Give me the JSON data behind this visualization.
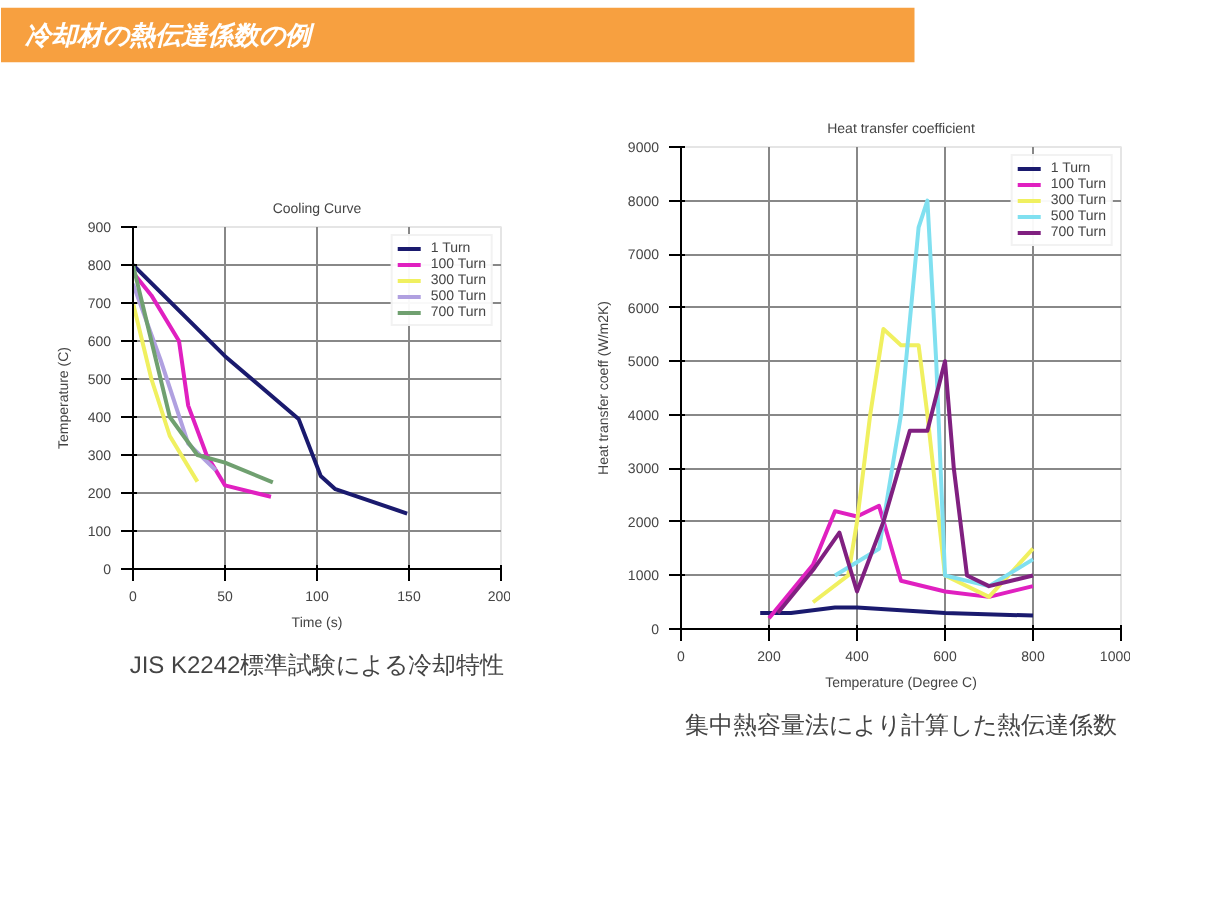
{
  "chart_data": [
    {
      "type": "other",
      "title": "冷却材の熱伝達係数の例"
    },
    {
      "type": "line",
      "title": "Cooling Curve",
      "xlabel": "Time (s)",
      "ylabel": "Temperature (C)",
      "xlim": [
        0,
        200
      ],
      "ylim": [
        0,
        900
      ],
      "xticks": [
        0,
        50,
        100,
        150,
        200
      ],
      "yticks": [
        0,
        100,
        200,
        300,
        400,
        500,
        600,
        700,
        800,
        900
      ],
      "grid": true,
      "legend": "top right",
      "marker": "none",
      "annotations": [
        "JIS K2242標準試験による冷却特性"
      ],
      "series": [
        {
          "name": "1 Turn",
          "color": "#1a1a6e",
          "x": [
            0,
            50,
            90,
            102,
            110,
            149
          ],
          "values": [
            800,
            560,
            395,
            245,
            210,
            146
          ]
        },
        {
          "name": "100 Turn",
          "color": "#e020c0",
          "x": [
            0,
            10,
            25,
            30,
            40,
            50,
            75
          ],
          "values": [
            780,
            720,
            600,
            430,
            300,
            220,
            190
          ]
        },
        {
          "name": "300 Turn",
          "color": "#f0f060",
          "x": [
            0,
            10,
            20,
            35
          ],
          "values": [
            700,
            500,
            350,
            230
          ]
        },
        {
          "name": "500 Turn",
          "color": "#b0a0e0",
          "x": [
            0,
            15,
            30,
            45
          ],
          "values": [
            750,
            550,
            330,
            260
          ]
        },
        {
          "name": "700 Turn",
          "color": "#70a070",
          "x": [
            0,
            10,
            20,
            35,
            50,
            76
          ],
          "values": [
            800,
            600,
            400,
            300,
            280,
            228
          ]
        }
      ]
    },
    {
      "type": "line",
      "title": "Heat transfer coefficient",
      "xlabel": "Temperature (Degree C)",
      "ylabel": "Heat transfer coeff (W/m2K)",
      "xlim": [
        0,
        1000
      ],
      "ylim": [
        0,
        9000
      ],
      "xticks": [
        0,
        200,
        400,
        600,
        800,
        1000
      ],
      "yticks": [
        0,
        1000,
        2000,
        3000,
        4000,
        5000,
        6000,
        7000,
        8000,
        9000
      ],
      "grid": true,
      "legend": "top right",
      "marker": "none",
      "annotations": [
        "集中熱容量法により計算した熱伝達係数"
      ],
      "series": [
        {
          "name": "1 Turn",
          "color": "#1a1a6e",
          "x": [
            180,
            250,
            350,
            400,
            500,
            600,
            800
          ],
          "values": [
            300,
            300,
            400,
            400,
            350,
            300,
            250
          ]
        },
        {
          "name": "100 Turn",
          "color": "#e020c0",
          "x": [
            200,
            300,
            350,
            400,
            450,
            500,
            600,
            700,
            800
          ],
          "values": [
            200,
            1200,
            2200,
            2100,
            2300,
            900,
            700,
            600,
            800
          ]
        },
        {
          "name": "300 Turn",
          "color": "#f0f060",
          "x": [
            300,
            380,
            400,
            430,
            460,
            500,
            540,
            560,
            600,
            700,
            800
          ],
          "values": [
            500,
            1000,
            2000,
            4000,
            5600,
            5300,
            5300,
            4000,
            1000,
            600,
            1500
          ]
        },
        {
          "name": "500 Turn",
          "color": "#80e0f0",
          "x": [
            350,
            450,
            500,
            540,
            560,
            580,
            600,
            700,
            800
          ],
          "values": [
            1000,
            1500,
            4000,
            7500,
            8000,
            5000,
            1000,
            800,
            1300
          ]
        },
        {
          "name": "700 Turn",
          "color": "#802080",
          "x": [
            220,
            300,
            360,
            400,
            460,
            520,
            560,
            600,
            620,
            650,
            700,
            800
          ],
          "values": [
            300,
            1100,
            1800,
            700,
            2000,
            3700,
            3700,
            5000,
            3000,
            1000,
            800,
            1000
          ]
        }
      ]
    }
  ]
}
